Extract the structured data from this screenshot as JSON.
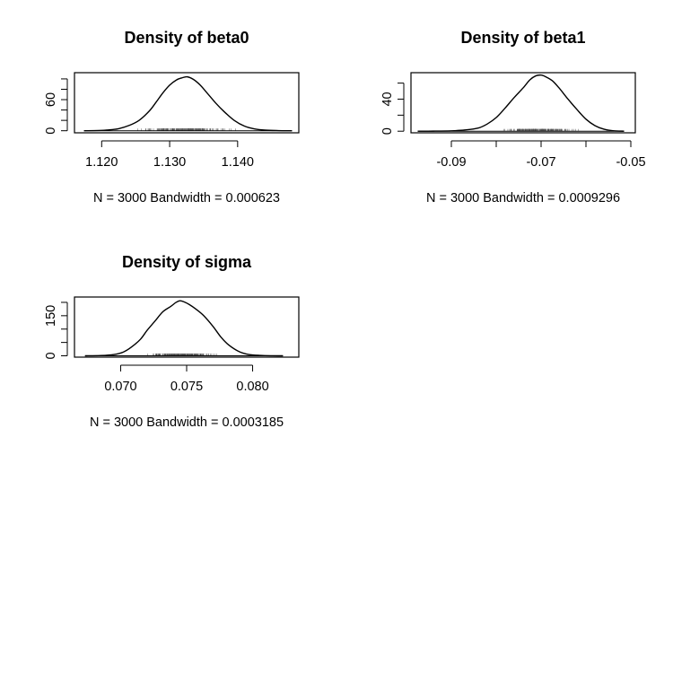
{
  "chart_data": [
    {
      "type": "line",
      "title": "Density of beta0",
      "xlabel": "N = 3000   Bandwidth = 0.000623",
      "ylabel": "",
      "xlim": [
        1.116,
        1.149
      ],
      "ylim": [
        -4,
        112
      ],
      "x_ticks": [
        1.12,
        1.13,
        1.14
      ],
      "x_tick_labels": [
        "1.120",
        "1.130",
        "1.140"
      ],
      "y_ticks": [
        0,
        20,
        40,
        60,
        80,
        100
      ],
      "y_tick_labels": [
        "0",
        "",
        "",
        "60",
        "",
        ""
      ],
      "grid": false,
      "series": [
        {
          "x": [
            1.1174,
            1.1195,
            1.121,
            1.1225,
            1.124,
            1.1255,
            1.127,
            1.128,
            1.129,
            1.13,
            1.131,
            1.1318,
            1.1326,
            1.1335,
            1.1345,
            1.1355,
            1.1368,
            1.138,
            1.1395,
            1.141,
            1.1425,
            1.144,
            1.146,
            1.148
          ],
          "y": [
            0,
            0.5,
            1.5,
            4,
            10,
            20,
            38,
            55,
            73,
            88,
            98,
            102,
            104,
            99,
            88,
            73,
            53,
            37,
            20,
            9,
            3.5,
            1.2,
            0.3,
            0
          ]
        }
      ],
      "rug": {
        "x_from": 1.1195,
        "x_to": 1.145
      }
    },
    {
      "type": "line",
      "title": "Density of beta1",
      "xlabel": "N = 3000   Bandwidth = 0.0009296",
      "ylabel": "",
      "xlim": [
        -0.099,
        -0.049
      ],
      "ylim": [
        -2,
        73
      ],
      "x_ticks": [
        -0.09,
        -0.08,
        -0.07,
        -0.06,
        -0.05
      ],
      "x_tick_labels": [
        "-0.09",
        "",
        "-0.07",
        "",
        "-0.05"
      ],
      "y_ticks": [
        0,
        20,
        40,
        60
      ],
      "y_tick_labels": [
        "0",
        "",
        "40",
        ""
      ],
      "grid": false,
      "series": [
        {
          "x": [
            -0.0975,
            -0.094,
            -0.09,
            -0.087,
            -0.084,
            -0.082,
            -0.08,
            -0.078,
            -0.076,
            -0.074,
            -0.0725,
            -0.0712,
            -0.07,
            -0.069,
            -0.0675,
            -0.066,
            -0.064,
            -0.062,
            -0.06,
            -0.058,
            -0.056,
            -0.054,
            -0.0515
          ],
          "y": [
            0,
            0.1,
            0.5,
            1.5,
            4,
            9,
            17,
            29,
            42,
            54,
            64,
            69,
            70,
            68,
            63,
            54,
            40,
            27,
            15,
            7,
            2.5,
            0.6,
            0
          ]
        }
      ],
      "rug": {
        "x_from": -0.087,
        "x_to": -0.055
      }
    },
    {
      "type": "line",
      "title": "Density of sigma",
      "xlabel": "N = 3000   Bandwidth = 0.0003185",
      "ylabel": "",
      "xlim": [
        0.0665,
        0.0835
      ],
      "ylim": [
        -5,
        220
      ],
      "x_ticks": [
        0.07,
        0.075,
        0.08
      ],
      "x_tick_labels": [
        "0.070",
        "0.075",
        "0.080"
      ],
      "y_ticks": [
        0,
        50,
        100,
        150,
        200
      ],
      "y_tick_labels": [
        "0",
        "",
        "",
        "150",
        ""
      ],
      "grid": false,
      "series": [
        {
          "x": [
            0.0673,
            0.0685,
            0.0695,
            0.0702,
            0.0708,
            0.0715,
            0.072,
            0.0726,
            0.0732,
            0.0738,
            0.0742,
            0.0745,
            0.0748,
            0.0752,
            0.0757,
            0.0763,
            0.077,
            0.0776,
            0.0782,
            0.079,
            0.0797,
            0.0806,
            0.0815,
            0.0823
          ],
          "y": [
            0,
            1,
            5,
            14,
            32,
            62,
            95,
            130,
            165,
            185,
            200,
            206,
            202,
            192,
            175,
            150,
            110,
            70,
            40,
            15,
            5,
            1.5,
            0.3,
            0
          ]
        }
      ],
      "rug": {
        "x_from": 0.0698,
        "x_to": 0.0795
      }
    }
  ]
}
